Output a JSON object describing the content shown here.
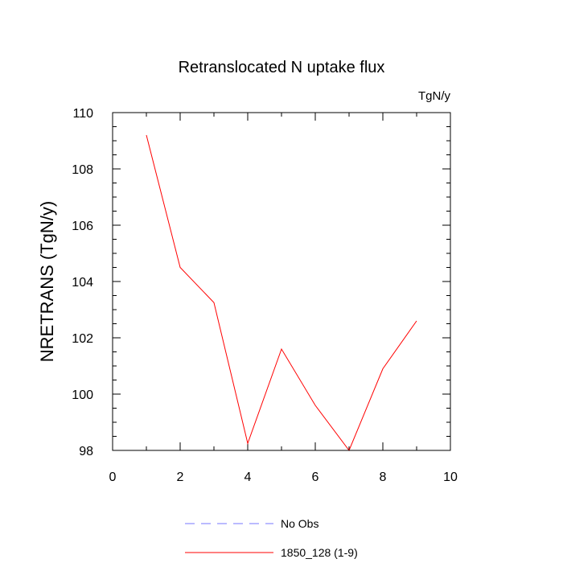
{
  "chart_data": {
    "type": "line",
    "title": "Retranslocated N uptake flux",
    "units_label": "TgN/y",
    "ylabel": "NRETRANS  (TgN/y)",
    "xlabel": "",
    "xlim": [
      0,
      10
    ],
    "ylim": [
      98,
      110
    ],
    "x_ticks": [
      0,
      2,
      4,
      6,
      8,
      10
    ],
    "y_ticks": [
      98,
      100,
      102,
      104,
      106,
      108,
      110
    ],
    "x_minor_step": 1,
    "y_minor_step": 0.5,
    "grid": false,
    "legend_position": "bottom",
    "series": [
      {
        "name": "No Obs",
        "color": "#7777ff",
        "dash": "dashed",
        "x": [],
        "values": []
      },
      {
        "name": "1850_128 (1-9)",
        "color": "#ff0000",
        "dash": "solid",
        "x": [
          1,
          2,
          3,
          4,
          5,
          6,
          7,
          8,
          9
        ],
        "values": [
          109.2,
          104.5,
          103.25,
          98.25,
          101.6,
          99.6,
          98.0,
          100.9,
          102.6
        ]
      }
    ]
  }
}
